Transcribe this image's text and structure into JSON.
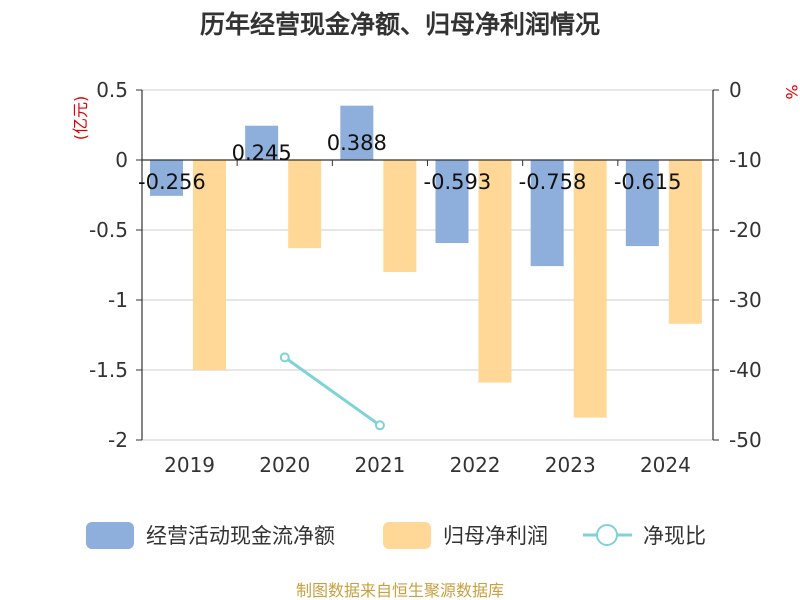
{
  "chart_data": {
    "type": "bar",
    "title": "历年经营现金净额、归母净利润情况",
    "categories": [
      "2019",
      "2020",
      "2021",
      "2022",
      "2023",
      "2024"
    ],
    "series": [
      {
        "name": "经营活动现金流净额",
        "axis": "left",
        "color": "#8eaedb",
        "values": [
          -0.256,
          0.245,
          0.388,
          -0.593,
          -0.758,
          -0.615
        ],
        "labels": [
          "-0.256",
          "0.245",
          "0.388",
          "-0.593",
          "-0.758",
          "-0.615"
        ]
      },
      {
        "name": "归母净利润",
        "axis": "left",
        "color": "#ffd898",
        "values": [
          -1.5,
          -0.63,
          -0.8,
          -1.59,
          -1.84,
          -1.17
        ]
      },
      {
        "name": "净现比",
        "axis": "right",
        "type": "line",
        "color": "#7ed3d8",
        "values": [
          null,
          -38.2,
          -47.9,
          null,
          null,
          null
        ]
      }
    ],
    "left_axis": {
      "unit_label": "(亿元)",
      "ylim": [
        -2,
        0.5
      ],
      "ticks": [
        0.5,
        0,
        -0.5,
        -1,
        -1.5,
        -2
      ],
      "tick_labels": [
        "0.5",
        "0",
        "-0.5",
        "-1",
        "-1.5",
        "-2"
      ]
    },
    "right_axis": {
      "unit_label": "%",
      "ylim": [
        -50,
        0
      ],
      "ticks": [
        0,
        -10,
        -20,
        -30,
        -40,
        -50
      ],
      "tick_labels": [
        "0",
        "-10",
        "-20",
        "-30",
        "-40",
        "-50"
      ]
    },
    "legend": {
      "position": "bottom",
      "items": [
        "经营活动现金流净额",
        "归母净利润",
        "净现比"
      ]
    },
    "grid": true
  },
  "source": "制图数据来自恒生聚源数据库",
  "colors": {
    "grid": "#cccccc",
    "axis": "#333333",
    "accent_red": "#e00000",
    "source": "#c8a040"
  }
}
